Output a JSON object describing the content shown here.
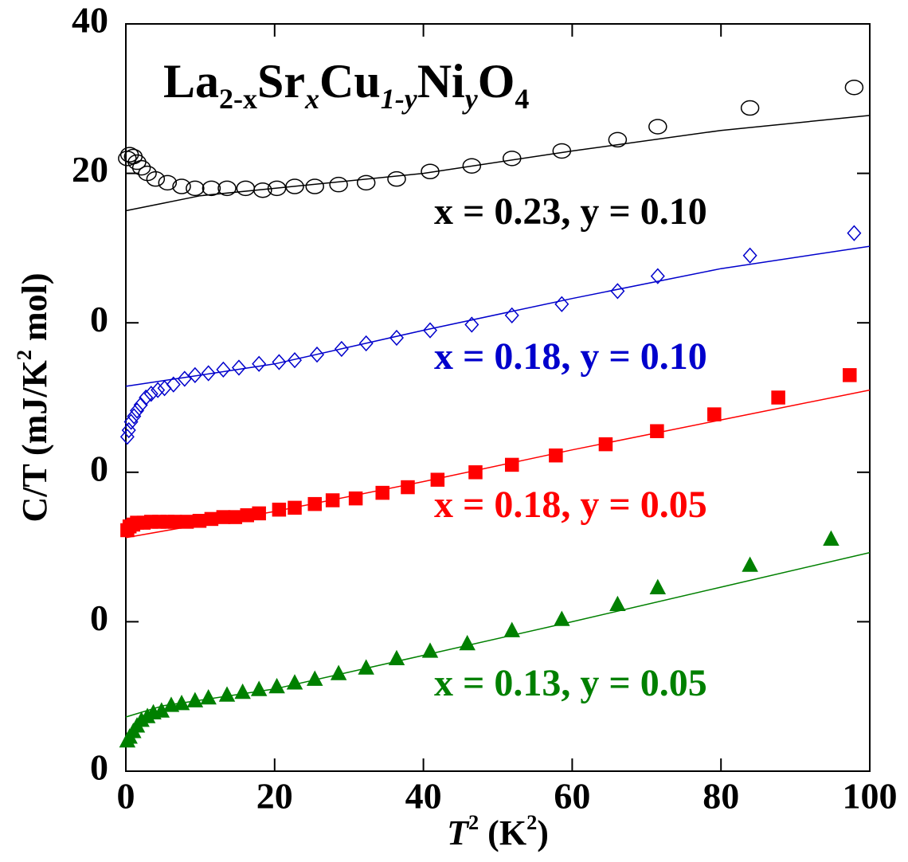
{
  "chart_data": {
    "type": "scatter",
    "title": [
      "La",
      "2-x",
      "Sr",
      "x",
      "Cu",
      "1-y",
      "Ni",
      "y",
      "O",
      "4"
    ],
    "xlabel": [
      "T",
      "2",
      " (K",
      "2",
      ")"
    ],
    "ylabel": [
      "C/T  (mJ/K",
      "2",
      " mol)"
    ],
    "xlim": [
      0,
      100
    ],
    "xticks": [
      0,
      20,
      40,
      60,
      80,
      100
    ],
    "ylim": [
      0,
      40
    ],
    "yticks": [
      0,
      {
        "value": 8,
        "label": "0"
      },
      {
        "value": 16,
        "label": "0"
      },
      {
        "value": 24,
        "label": "0"
      },
      {
        "value": 32,
        "label": "20"
      },
      40
    ],
    "series": [
      {
        "name": "x = 0.23, y = 0.10",
        "color": "#000000",
        "marker": "circle",
        "filled": false,
        "x": [
          0.2,
          0.5,
          1.0,
          1.5,
          2.1,
          2.9,
          4.0,
          5.6,
          7.5,
          9.3,
          11.5,
          13.6,
          16.1,
          18.4,
          20.3,
          22.7,
          25.4,
          28.6,
          32.3,
          36.4,
          40.9,
          46.5,
          51.9,
          58.6,
          66.1,
          71.5,
          83.9,
          97.9
        ],
        "values": [
          32.8,
          33.0,
          32.9,
          32.6,
          32.3,
          32.0,
          31.7,
          31.5,
          31.3,
          31.2,
          31.2,
          31.2,
          31.2,
          31.1,
          31.2,
          31.3,
          31.3,
          31.4,
          31.5,
          31.7,
          32.1,
          32.4,
          32.8,
          33.2,
          33.8,
          34.5,
          35.5,
          36.6
        ],
        "fit": {
          "x": [
            0,
            5,
            10,
            20,
            40,
            60,
            80,
            100
          ],
          "values": [
            30.0,
            30.4,
            30.8,
            31.2,
            32.0,
            33.2,
            34.3,
            35.1
          ]
        }
      },
      {
        "name": "x = 0.18, y = 0.10",
        "color": "#0000cc",
        "marker": "diamond",
        "filled": false,
        "x": [
          0.2,
          0.4,
          0.7,
          1.1,
          1.5,
          2.0,
          2.7,
          3.4,
          4.3,
          5.2,
          6.4,
          7.9,
          9.3,
          11.1,
          13.1,
          15.2,
          17.9,
          20.6,
          22.7,
          25.7,
          29.0,
          32.3,
          36.4,
          40.9,
          46.5,
          51.9,
          58.6,
          66.1,
          71.5,
          83.9,
          97.9
        ],
        "values": [
          17.9,
          18.25,
          18.7,
          19.0,
          19.3,
          19.6,
          20.0,
          20.2,
          20.4,
          20.5,
          20.7,
          21.0,
          21.2,
          21.3,
          21.5,
          21.6,
          21.8,
          21.9,
          22.0,
          22.3,
          22.6,
          22.9,
          23.2,
          23.6,
          23.9,
          24.4,
          25.0,
          25.7,
          26.5,
          27.6,
          28.8
        ],
        "fit": {
          "x": [
            0,
            5,
            20,
            40,
            60,
            80,
            100
          ],
          "values": [
            20.6,
            20.9,
            21.8,
            23.6,
            25.3,
            26.9,
            28.1
          ]
        }
      },
      {
        "name": "x = 0.18, y = 0.05",
        "color": "#ff0000",
        "marker": "square",
        "filled": true,
        "x": [
          0.2,
          0.5,
          1.0,
          1.5,
          2.4,
          3.4,
          4.5,
          5.6,
          6.6,
          8.2,
          9.9,
          11.5,
          13.1,
          14.7,
          16.3,
          17.9,
          20.6,
          22.7,
          25.4,
          27.8,
          30.9,
          34.5,
          37.9,
          41.9,
          47.0,
          51.9,
          57.8,
          64.5,
          71.4,
          79.1,
          87.7,
          97.3
        ],
        "values": [
          12.9,
          13.1,
          13.2,
          13.3,
          13.3,
          13.35,
          13.35,
          13.35,
          13.35,
          13.35,
          13.4,
          13.5,
          13.6,
          13.6,
          13.7,
          13.8,
          14.0,
          14.1,
          14.3,
          14.5,
          14.6,
          14.9,
          15.2,
          15.6,
          16.0,
          16.4,
          16.9,
          17.5,
          18.2,
          19.1,
          20.0,
          21.2
        ],
        "fit": {
          "x": [
            0,
            20,
            40,
            60,
            80,
            100
          ],
          "values": [
            12.5,
            13.9,
            15.5,
            17.2,
            18.8,
            20.4
          ]
        }
      },
      {
        "name": "x = 0.13, y = 0.05",
        "color": "#008000",
        "marker": "triangle",
        "filled": true,
        "x": [
          0.2,
          0.5,
          1.0,
          1.5,
          2.1,
          2.9,
          3.7,
          4.8,
          6.1,
          7.5,
          9.3,
          11.1,
          13.6,
          15.7,
          17.9,
          20.3,
          22.7,
          25.4,
          28.6,
          32.3,
          36.4,
          40.9,
          45.9,
          51.9,
          58.6,
          66.1,
          71.5,
          83.9,
          94.8
        ],
        "values": [
          1.6,
          1.8,
          2.1,
          2.4,
          2.7,
          2.9,
          3.1,
          3.2,
          3.5,
          3.6,
          3.75,
          3.9,
          4.05,
          4.2,
          4.35,
          4.5,
          4.7,
          4.9,
          5.2,
          5.5,
          6.0,
          6.4,
          6.8,
          7.5,
          8.1,
          8.9,
          9.8,
          11.0,
          12.4
        ],
        "fit": {
          "x": [
            0,
            5,
            20,
            40,
            60,
            80,
            100
          ],
          "values": [
            2.9,
            3.5,
            4.4,
            6.2,
            8.0,
            9.85,
            11.7
          ]
        }
      }
    ]
  }
}
